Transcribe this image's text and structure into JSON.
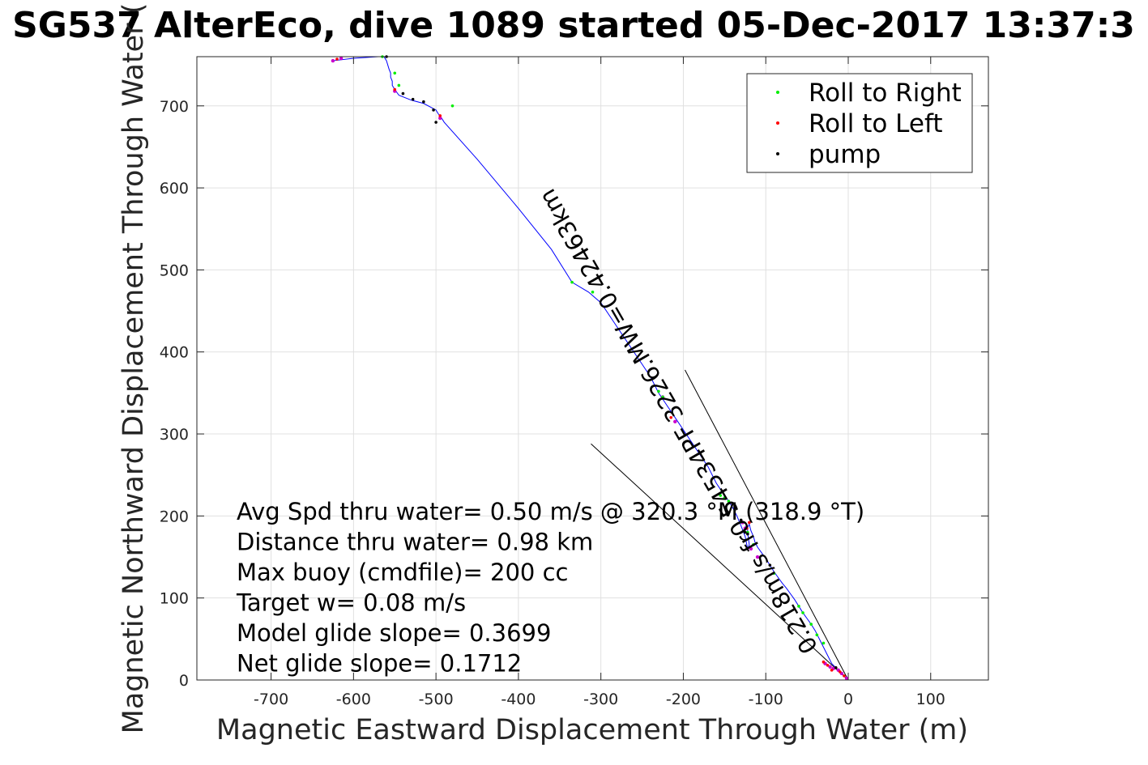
{
  "chart_data": {
    "type": "scatter",
    "title": "SG537 AlterEco, dive 1089 started 05-Dec-2017 13:37:3",
    "xlabel": "Magnetic Eastward Displacement Through Water (m)",
    "ylabel": "Magnetic Northward Displacement Through Water (",
    "xlim": [
      -790,
      170
    ],
    "ylim": [
      0,
      760
    ],
    "xticks": [
      -700,
      -600,
      -500,
      -400,
      -300,
      -200,
      -100,
      0,
      100
    ],
    "yticks": [
      0,
      100,
      200,
      300,
      400,
      500,
      600,
      700
    ],
    "grid": true,
    "legend_position": "top-right",
    "colors": {
      "track": "#0000ff",
      "roll_right": "#00ee00",
      "roll_left": "#ff0000",
      "pump": "#000000",
      "grid": "#e0e0e0",
      "axis": "#262626",
      "purple_marker": "#cc00cc"
    },
    "legend": [
      {
        "label": "Roll to Right",
        "color": "#00ee00"
      },
      {
        "label": "Roll to Left",
        "color": "#ff0000"
      },
      {
        "label": "pump",
        "color": "#000000"
      }
    ],
    "track": {
      "x": [
        0,
        -5,
        -10,
        -15,
        -20,
        -25,
        -30,
        -35,
        -40,
        -45,
        -50,
        -55,
        -60,
        -65,
        -70,
        -75,
        -80,
        -85,
        -90,
        -95,
        -100,
        -105,
        -110,
        -113,
        -115,
        -118,
        -120,
        -122,
        -122,
        -121,
        -120,
        -122,
        -125,
        -130,
        -135,
        -140,
        -145,
        -150,
        -160,
        -170,
        -180,
        -190,
        -200,
        -210,
        -220,
        -230,
        -240,
        -260,
        -280,
        -300,
        -315,
        -335,
        -360,
        -400,
        -450,
        -490,
        -495,
        -497,
        -500,
        -515,
        -530,
        -545,
        -550,
        -553,
        -553,
        -555,
        -555,
        -557,
        -560,
        -563,
        -565,
        -570,
        -600,
        -625
      ],
      "y": [
        0,
        5,
        10,
        15,
        20,
        30,
        40,
        50,
        60,
        68,
        75,
        82,
        90,
        98,
        105,
        112,
        118,
        125,
        132,
        140,
        148,
        155,
        162,
        168,
        175,
        182,
        190,
        186,
        180,
        172,
        165,
        160,
        175,
        188,
        200,
        210,
        218,
        225,
        240,
        260,
        275,
        290,
        305,
        320,
        335,
        350,
        370,
        400,
        430,
        460,
        473,
        485,
        525,
        575,
        635,
        680,
        688,
        690,
        695,
        703,
        707,
        713,
        720,
        725,
        730,
        735,
        740,
        745,
        755,
        760,
        760,
        760,
        758,
        755
      ]
    },
    "roll_right": {
      "x": [
        -55,
        -45,
        -30,
        -38,
        -60,
        -90,
        -115,
        -122,
        -145,
        -150,
        -155,
        -225,
        -230,
        -310,
        -335,
        -480,
        -545,
        -550,
        -565
      ],
      "y": [
        82,
        68,
        45,
        55,
        90,
        130,
        165,
        180,
        218,
        222,
        225,
        345,
        352,
        473,
        485,
        700,
        725,
        740,
        760
      ]
    },
    "roll_left": {
      "x": [
        -5,
        -10,
        -15,
        -20,
        -25,
        -30,
        -120,
        -123,
        -215,
        -495,
        -550,
        -620
      ],
      "y": [
        5,
        10,
        15,
        12,
        18,
        22,
        192,
        185,
        320,
        688,
        720,
        757
      ]
    },
    "pump": {
      "x": [
        -15,
        -95,
        -122,
        -125,
        -130,
        -500,
        -503,
        -515,
        -528,
        -540,
        -560
      ],
      "y": [
        15,
        140,
        178,
        180,
        195,
        680,
        695,
        705,
        708,
        715,
        760
      ]
    },
    "purple_markers": {
      "x": [
        -2,
        -8,
        -12,
        -18,
        -22,
        -28,
        -110,
        -118,
        -125,
        -128,
        -210,
        -225,
        -495,
        -550,
        -615,
        -625
      ],
      "y": [
        2,
        8,
        12,
        14,
        16,
        20,
        150,
        160,
        185,
        192,
        315,
        345,
        685,
        718,
        758,
        755
      ]
    },
    "model_glide_lines": [
      {
        "x": [
          0,
          -198
        ],
        "y": [
          0,
          378
        ]
      },
      {
        "x": [
          0,
          -312
        ],
        "y": [
          0,
          288
        ]
      }
    ],
    "bearing_annotation": "0.218m/s fr0 54534PF 3226.MW=0.42463km",
    "stats": [
      "Avg Spd thru water=  0.50 m/s @ 320.3 °M (318.9 °T)",
      "Distance thru water=  0.98 km",
      "Max buoy (cmdfile)= 200 cc",
      "Target w= 0.08 m/s",
      "Model glide slope= 0.3699",
      "Net glide slope= 0.1712"
    ]
  }
}
